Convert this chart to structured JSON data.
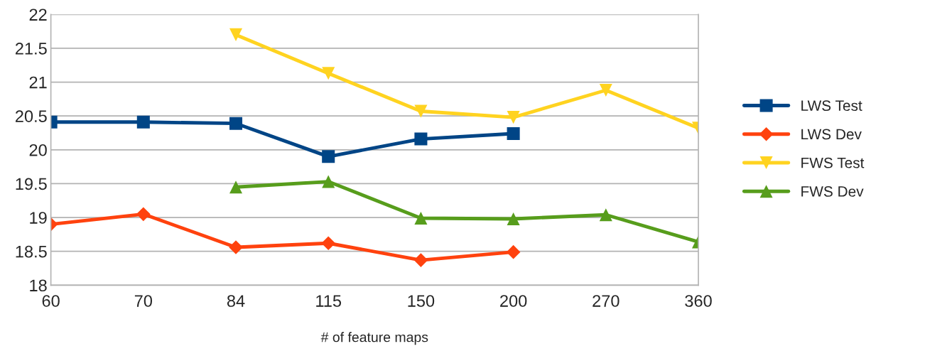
{
  "chart_data": {
    "type": "line",
    "xlabel": "# of feature maps",
    "categories": [
      "60",
      "70",
      "84",
      "115",
      "150",
      "200",
      "270",
      "360"
    ],
    "series": [
      {
        "name": "LWS Test",
        "color": "#004586",
        "marker": "square",
        "values": [
          20.41,
          20.41,
          20.39,
          19.9,
          20.16,
          20.24,
          null,
          null
        ]
      },
      {
        "name": "LWS Dev",
        "color": "#ff420e",
        "marker": "diamond",
        "values": [
          18.9,
          19.05,
          18.56,
          18.62,
          18.37,
          18.49,
          null,
          null
        ]
      },
      {
        "name": "FWS Test",
        "color": "#ffd320",
        "marker": "triangle_down",
        "values": [
          null,
          null,
          21.7,
          21.13,
          20.57,
          20.48,
          20.88,
          20.32
        ]
      },
      {
        "name": "FWS Dev",
        "color": "#579d1c",
        "marker": "triangle",
        "values": [
          null,
          null,
          19.45,
          19.53,
          18.99,
          18.98,
          19.04,
          18.64
        ]
      }
    ],
    "ylim": [
      18,
      22
    ],
    "yticks": [
      18,
      18.5,
      19,
      19.5,
      20,
      20.5,
      21,
      21.5,
      22
    ],
    "grid": "y",
    "legend": "right",
    "line_style": "solid"
  }
}
